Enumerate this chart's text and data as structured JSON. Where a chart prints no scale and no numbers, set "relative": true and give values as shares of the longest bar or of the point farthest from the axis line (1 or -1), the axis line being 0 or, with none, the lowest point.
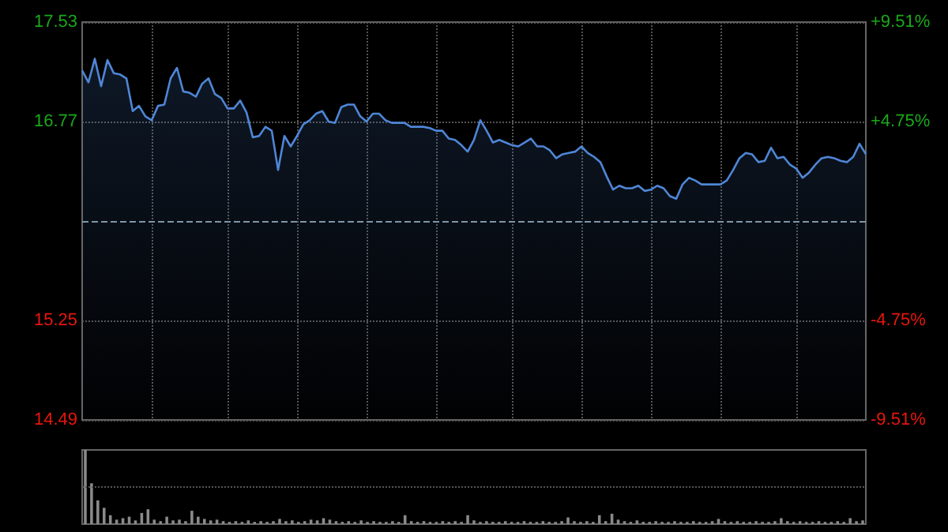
{
  "chart_data": [
    {
      "type": "area",
      "categories": [
        null,
        null,
        null,
        null,
        null,
        null,
        null,
        null,
        null,
        null,
        null,
        null,
        null,
        null,
        null,
        null,
        null,
        null,
        null,
        null,
        null,
        null,
        null,
        null,
        null,
        null,
        null,
        null,
        null,
        null,
        null,
        null,
        null,
        null,
        null,
        null,
        null,
        null,
        null,
        null,
        null,
        null,
        null,
        null,
        null,
        null,
        null,
        null,
        null,
        null,
        null,
        null,
        null,
        null,
        null,
        null,
        null,
        null,
        null,
        null,
        null,
        null,
        null,
        null,
        null,
        null,
        null,
        null,
        null,
        null,
        null,
        null,
        null,
        null,
        null,
        null,
        null,
        null,
        null,
        null,
        null,
        null,
        null,
        null,
        null,
        null,
        null,
        null,
        null,
        null,
        null,
        null,
        null,
        null,
        null,
        null,
        null,
        null,
        null,
        null,
        null,
        null,
        null,
        null,
        null,
        null,
        null,
        null,
        null,
        null,
        null,
        null,
        null,
        null,
        null,
        null,
        null,
        null,
        null,
        null,
        null,
        null,
        null,
        null,
        null
      ],
      "series": [
        {
          "color": "#4f86d6",
          "values": [
            17.16,
            17.07,
            17.25,
            17.04,
            17.24,
            17.14,
            17.13,
            17.1,
            16.85,
            16.89,
            16.81,
            16.78,
            16.89,
            16.9,
            17.1,
            17.18,
            17.0,
            16.99,
            16.96,
            17.06,
            17.1,
            16.98,
            16.95,
            16.87,
            16.87,
            16.93,
            16.84,
            16.65,
            16.66,
            16.73,
            16.7,
            16.4,
            16.66,
            16.58,
            16.66,
            16.75,
            16.78,
            16.83,
            16.85,
            16.77,
            16.76,
            16.88,
            16.9,
            16.9,
            16.81,
            16.77,
            16.83,
            16.83,
            16.78,
            16.76,
            16.76,
            16.76,
            16.73,
            16.73,
            16.73,
            16.72,
            16.7,
            16.7,
            16.64,
            16.63,
            16.59,
            16.54,
            16.63,
            16.78,
            16.7,
            16.61,
            16.63,
            16.61,
            16.59,
            16.58,
            16.61,
            16.64,
            16.58,
            16.58,
            16.55,
            16.49,
            16.52,
            16.53,
            16.54,
            16.58,
            16.53,
            16.5,
            16.46,
            16.35,
            16.25,
            16.28,
            16.26,
            16.26,
            16.28,
            16.24,
            16.25,
            16.28,
            16.26,
            16.2,
            16.18,
            16.29,
            16.34,
            16.32,
            16.29,
            16.29,
            16.29,
            16.29,
            16.32,
            16.4,
            16.49,
            16.53,
            16.52,
            16.46,
            16.47,
            16.57,
            16.49,
            16.5,
            16.44,
            16.41,
            16.34,
            16.38,
            16.44,
            16.49,
            16.5,
            16.49,
            16.47,
            16.46,
            16.5,
            16.6,
            16.52
          ]
        }
      ],
      "ylim": [
        14.49,
        17.53
      ],
      "yticks": [
        14.49,
        15.25,
        16.77,
        17.53
      ],
      "y2lim": [
        -9.51,
        9.51
      ],
      "y2ticks": [
        {
          "value": -9.51,
          "label": "-9.51%"
        },
        {
          "value": -4.75,
          "label": "-4.75%"
        },
        {
          "value": 4.75,
          "label": "+4.75%"
        },
        {
          "value": 9.51,
          "label": "+9.51%"
        }
      ],
      "ref_lines": [
        {
          "axis": "y",
          "value": 16.01,
          "color": "#7f95a8",
          "line_style": "dashed"
        }
      ],
      "grid": true
    },
    {
      "type": "bar",
      "relative": true,
      "categories": [
        null,
        null,
        null,
        null,
        null,
        null,
        null,
        null,
        null,
        null,
        null,
        null,
        null,
        null,
        null,
        null,
        null,
        null,
        null,
        null,
        null,
        null,
        null,
        null,
        null,
        null,
        null,
        null,
        null,
        null,
        null,
        null,
        null,
        null,
        null,
        null,
        null,
        null,
        null,
        null,
        null,
        null,
        null,
        null,
        null,
        null,
        null,
        null,
        null,
        null,
        null,
        null,
        null,
        null,
        null,
        null,
        null,
        null,
        null,
        null,
        null,
        null,
        null,
        null,
        null,
        null,
        null,
        null,
        null,
        null,
        null,
        null,
        null,
        null,
        null,
        null,
        null,
        null,
        null,
        null,
        null,
        null,
        null,
        null,
        null,
        null,
        null,
        null,
        null,
        null,
        null,
        null,
        null,
        null,
        null,
        null,
        null,
        null,
        null,
        null,
        null,
        null,
        null,
        null,
        null,
        null,
        null,
        null,
        null,
        null,
        null,
        null,
        null,
        null,
        null,
        null,
        null,
        null,
        null,
        null,
        null,
        null,
        null,
        null,
        null
      ],
      "values": [
        1.0,
        0.55,
        0.32,
        0.22,
        0.12,
        0.06,
        0.08,
        0.1,
        0.05,
        0.15,
        0.2,
        0.06,
        0.04,
        0.1,
        0.05,
        0.06,
        0.04,
        0.18,
        0.1,
        0.07,
        0.05,
        0.06,
        0.04,
        0.03,
        0.04,
        0.03,
        0.05,
        0.03,
        0.04,
        0.03,
        0.04,
        0.07,
        0.04,
        0.05,
        0.03,
        0.04,
        0.06,
        0.05,
        0.08,
        0.06,
        0.04,
        0.03,
        0.04,
        0.03,
        0.05,
        0.03,
        0.04,
        0.03,
        0.03,
        0.04,
        0.03,
        0.12,
        0.04,
        0.03,
        0.04,
        0.03,
        0.03,
        0.04,
        0.03,
        0.04,
        0.03,
        0.12,
        0.05,
        0.03,
        0.04,
        0.03,
        0.03,
        0.04,
        0.03,
        0.03,
        0.04,
        0.03,
        0.03,
        0.04,
        0.03,
        0.03,
        0.04,
        0.09,
        0.04,
        0.03,
        0.04,
        0.03,
        0.12,
        0.04,
        0.14,
        0.06,
        0.04,
        0.03,
        0.05,
        0.03,
        0.03,
        0.04,
        0.03,
        0.03,
        0.04,
        0.03,
        0.03,
        0.04,
        0.03,
        0.03,
        0.04,
        0.07,
        0.04,
        0.03,
        0.04,
        0.03,
        0.03,
        0.04,
        0.03,
        0.03,
        0.04,
        0.08,
        0.04,
        0.03,
        0.04,
        0.03,
        0.03,
        0.04,
        0.03,
        0.03,
        0.04,
        0.03,
        0.08,
        0.04,
        0.05
      ],
      "color": "#8a8a8a",
      "ref_lines": [
        {
          "axis": "y",
          "value": 0.5,
          "color": "#555555",
          "line_style": "dotted"
        }
      ],
      "tick_labels": false
    }
  ]
}
